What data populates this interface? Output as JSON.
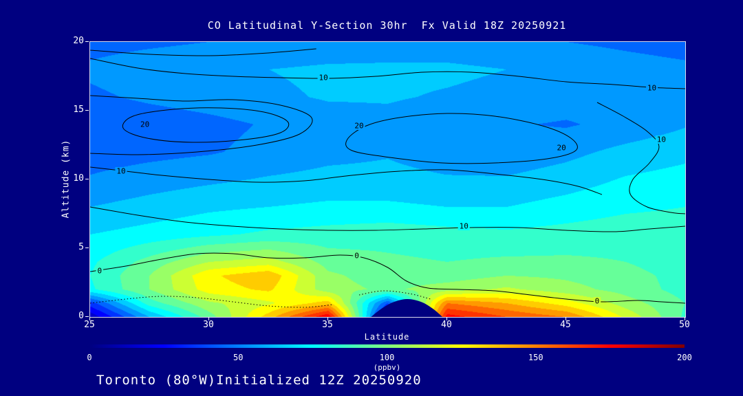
{
  "title": "CO Latitudinal Y-Section 30hr  Fx Valid 18Z 20250921",
  "footer": "Toronto (80°W)Initialized 12Z 20250920",
  "colors": {
    "background": "#000080",
    "text": "#ffffff",
    "contour": "#000000",
    "frame": "#ffffff"
  },
  "axes": {
    "x": {
      "label": "Latitude",
      "range": [
        25,
        50
      ],
      "ticks": [
        25,
        30,
        35,
        40,
        45,
        50
      ]
    },
    "y": {
      "label": "Altitude (km)",
      "range": [
        0,
        20
      ],
      "ticks": [
        0,
        5,
        10,
        15,
        20
      ]
    }
  },
  "colorbar": {
    "label": "(ppbv)",
    "range": [
      0,
      200
    ],
    "ticks": [
      0,
      50,
      100,
      150,
      200
    ]
  },
  "chart_data": {
    "type": "heatmap",
    "title": "CO Latitudinal Y-Section 30hr  Fx Valid 18Z 20250921",
    "xlabel": "Latitude",
    "ylabel": "Altitude (km)",
    "units": "ppbv",
    "value_range": [
      0,
      200
    ],
    "fill_level_step": 10,
    "x_lats": [
      25,
      27.5,
      30,
      32.5,
      35,
      37.5,
      40,
      42.5,
      45,
      47.5,
      50
    ],
    "y_alts_km": [
      20,
      18,
      16,
      14,
      12,
      10,
      8,
      6,
      4,
      3,
      2,
      1,
      0
    ],
    "values_ppbv": [
      [
        46,
        48,
        50,
        50,
        52,
        54,
        54,
        52,
        50,
        48,
        46
      ],
      [
        52,
        56,
        58,
        60,
        62,
        62,
        62,
        60,
        57,
        54,
        52
      ],
      [
        48,
        52,
        55,
        58,
        61,
        61,
        59,
        57,
        55,
        56,
        57
      ],
      [
        42,
        44,
        47,
        51,
        55,
        57,
        53,
        51,
        49,
        53,
        59
      ],
      [
        45,
        47,
        49,
        53,
        57,
        59,
        55,
        53,
        57,
        63,
        67
      ],
      [
        51,
        55,
        58,
        61,
        63,
        63,
        61,
        61,
        65,
        71,
        74
      ],
      [
        60,
        64,
        68,
        70,
        72,
        72,
        70,
        70,
        74,
        78,
        80
      ],
      [
        70,
        74,
        78,
        82,
        84,
        86,
        84,
        82,
        84,
        86,
        86
      ],
      [
        78,
        94,
        110,
        115,
        96,
        92,
        90,
        92,
        92,
        90,
        84
      ],
      [
        80,
        100,
        128,
        138,
        102,
        95,
        95,
        100,
        98,
        94,
        86
      ],
      [
        78,
        100,
        125,
        132,
        104,
        98,
        105,
        112,
        104,
        96,
        86
      ],
      [
        35,
        85,
        108,
        118,
        135,
        40,
        150,
        140,
        125,
        105,
        90
      ],
      [
        12,
        60,
        95,
        135,
        180,
        8,
        175,
        160,
        150,
        118,
        88
      ]
    ],
    "colormap_stops": [
      [
        0,
        "#000080"
      ],
      [
        0.125,
        "#0000ff"
      ],
      [
        0.375,
        "#00ffff"
      ],
      [
        0.625,
        "#ffff00"
      ],
      [
        0.875,
        "#ff0000"
      ],
      [
        1,
        "#800000"
      ]
    ],
    "contours": [
      {
        "style": "solid",
        "closed": false,
        "points": [
          [
            25,
            19.4
          ],
          [
            27.5,
            19.1
          ],
          [
            30,
            19.0
          ],
          [
            32.5,
            19.2
          ],
          [
            34.5,
            19.5
          ]
        ]
      },
      {
        "style": "solid",
        "closed": false,
        "points": [
          [
            25,
            18.8
          ],
          [
            27,
            18.1
          ],
          [
            29,
            17.7
          ],
          [
            31,
            17.5
          ],
          [
            33,
            17.4
          ],
          [
            35,
            17.35
          ],
          [
            37,
            17.5
          ],
          [
            39,
            17.8
          ],
          [
            41,
            17.8
          ],
          [
            43,
            17.5
          ],
          [
            45,
            17.1
          ],
          [
            47,
            16.9
          ],
          [
            48.5,
            16.7
          ],
          [
            50,
            16.6
          ]
        ]
      },
      {
        "style": "solid",
        "closed": false,
        "points": [
          [
            25,
            16.1
          ],
          [
            27,
            15.9
          ],
          [
            29,
            15.7
          ],
          [
            31,
            15.8
          ],
          [
            33,
            15.4
          ],
          [
            34.3,
            14.5
          ],
          [
            33.8,
            13.3
          ],
          [
            32,
            12.5
          ],
          [
            29.5,
            12.0
          ],
          [
            27,
            11.8
          ],
          [
            25,
            11.9
          ]
        ]
      },
      {
        "style": "solid",
        "closed": true,
        "points": [
          [
            26.8,
            14.6
          ],
          [
            28.5,
            15.1
          ],
          [
            30.5,
            15.2
          ],
          [
            32.3,
            14.9
          ],
          [
            33.3,
            14.2
          ],
          [
            33.0,
            13.4
          ],
          [
            31.5,
            12.9
          ],
          [
            29.3,
            12.7
          ],
          [
            27.4,
            13.0
          ],
          [
            26.4,
            13.7
          ]
        ]
      },
      {
        "style": "solid",
        "closed": true,
        "points": [
          [
            35.8,
            12.9
          ],
          [
            36.6,
            13.9
          ],
          [
            38,
            14.5
          ],
          [
            40,
            14.8
          ],
          [
            42,
            14.6
          ],
          [
            44,
            13.9
          ],
          [
            45.2,
            13.0
          ],
          [
            45.4,
            12.1
          ],
          [
            44.2,
            11.5
          ],
          [
            42,
            11.2
          ],
          [
            39.8,
            11.2
          ],
          [
            37.6,
            11.6
          ],
          [
            36.0,
            12.1
          ]
        ]
      },
      {
        "style": "solid",
        "closed": false,
        "points": [
          [
            46.3,
            15.6
          ],
          [
            47.4,
            14.6
          ],
          [
            48.4,
            13.5
          ],
          [
            48.9,
            12.4
          ],
          [
            48.5,
            11.2
          ],
          [
            47.8,
            10.0
          ],
          [
            47.7,
            8.9
          ],
          [
            48.4,
            8.0
          ],
          [
            49.4,
            7.6
          ],
          [
            50,
            7.5
          ]
        ]
      },
      {
        "style": "solid",
        "closed": false,
        "points": [
          [
            25,
            10.9
          ],
          [
            26.5,
            10.6
          ],
          [
            28,
            10.3
          ],
          [
            30,
            10.0
          ],
          [
            32,
            9.8
          ],
          [
            34,
            9.9
          ],
          [
            36,
            10.3
          ],
          [
            38,
            10.6
          ],
          [
            40,
            10.7
          ],
          [
            42,
            10.4
          ],
          [
            44,
            10.0
          ],
          [
            45.5,
            9.5
          ],
          [
            46.5,
            8.9
          ]
        ]
      },
      {
        "style": "solid",
        "closed": false,
        "points": [
          [
            25,
            8.0
          ],
          [
            27,
            7.4
          ],
          [
            29,
            6.9
          ],
          [
            31,
            6.6
          ],
          [
            33,
            6.4
          ],
          [
            35,
            6.3
          ],
          [
            37,
            6.3
          ],
          [
            39,
            6.4
          ],
          [
            41,
            6.5
          ],
          [
            43,
            6.5
          ],
          [
            45,
            6.3
          ],
          [
            47,
            6.2
          ],
          [
            48.5,
            6.4
          ],
          [
            50,
            6.6
          ]
        ]
      },
      {
        "style": "solid",
        "closed": false,
        "points": [
          [
            25,
            3.3
          ],
          [
            26.5,
            3.7
          ],
          [
            28,
            4.2
          ],
          [
            29.5,
            4.6
          ],
          [
            31,
            4.6
          ],
          [
            32.5,
            4.3
          ],
          [
            34,
            4.3
          ],
          [
            35.5,
            4.5
          ],
          [
            36.5,
            4.3
          ],
          [
            37.5,
            3.6
          ],
          [
            38.3,
            2.6
          ],
          [
            39.2,
            2.1
          ],
          [
            40.5,
            2.0
          ],
          [
            42,
            1.9
          ],
          [
            43.5,
            1.6
          ],
          [
            45,
            1.3
          ],
          [
            46.5,
            1.1
          ],
          [
            48,
            1.2
          ],
          [
            49,
            1.1
          ],
          [
            50,
            1.0
          ]
        ]
      },
      {
        "style": "dotted",
        "closed": false,
        "points": [
          [
            25,
            1.0
          ],
          [
            26.5,
            1.3
          ],
          [
            28,
            1.5
          ],
          [
            29.5,
            1.4
          ],
          [
            31,
            1.1
          ],
          [
            32.5,
            0.8
          ],
          [
            34,
            0.7
          ],
          [
            35.2,
            0.9
          ]
        ]
      },
      {
        "style": "dotted",
        "closed": false,
        "points": [
          [
            36.3,
            1.6
          ],
          [
            37.3,
            1.9
          ],
          [
            38.4,
            1.7
          ],
          [
            39.3,
            1.3
          ]
        ]
      }
    ],
    "contour_labels": [
      {
        "text": "10",
        "lat": 34.8,
        "alt": 17.4
      },
      {
        "text": "10",
        "lat": 48.6,
        "alt": 16.65
      },
      {
        "text": "20",
        "lat": 27.3,
        "alt": 14.0
      },
      {
        "text": "20",
        "lat": 36.3,
        "alt": 13.9
      },
      {
        "text": "20",
        "lat": 44.8,
        "alt": 12.3
      },
      {
        "text": "10",
        "lat": 26.3,
        "alt": 10.6
      },
      {
        "text": "10",
        "lat": 49.0,
        "alt": 12.9
      },
      {
        "text": "10",
        "lat": 40.7,
        "alt": 6.6
      },
      {
        "text": "0",
        "lat": 25.4,
        "alt": 3.35
      },
      {
        "text": "0",
        "lat": 36.2,
        "alt": 4.45
      },
      {
        "text": "0",
        "lat": 46.3,
        "alt": 1.15
      }
    ],
    "terrain_outline": [
      [
        36.8,
        0
      ],
      [
        37.2,
        0.55
      ],
      [
        37.7,
        1.05
      ],
      [
        38.3,
        1.3
      ],
      [
        38.9,
        1.1
      ],
      [
        39.4,
        0.6
      ],
      [
        39.8,
        0
      ]
    ]
  }
}
